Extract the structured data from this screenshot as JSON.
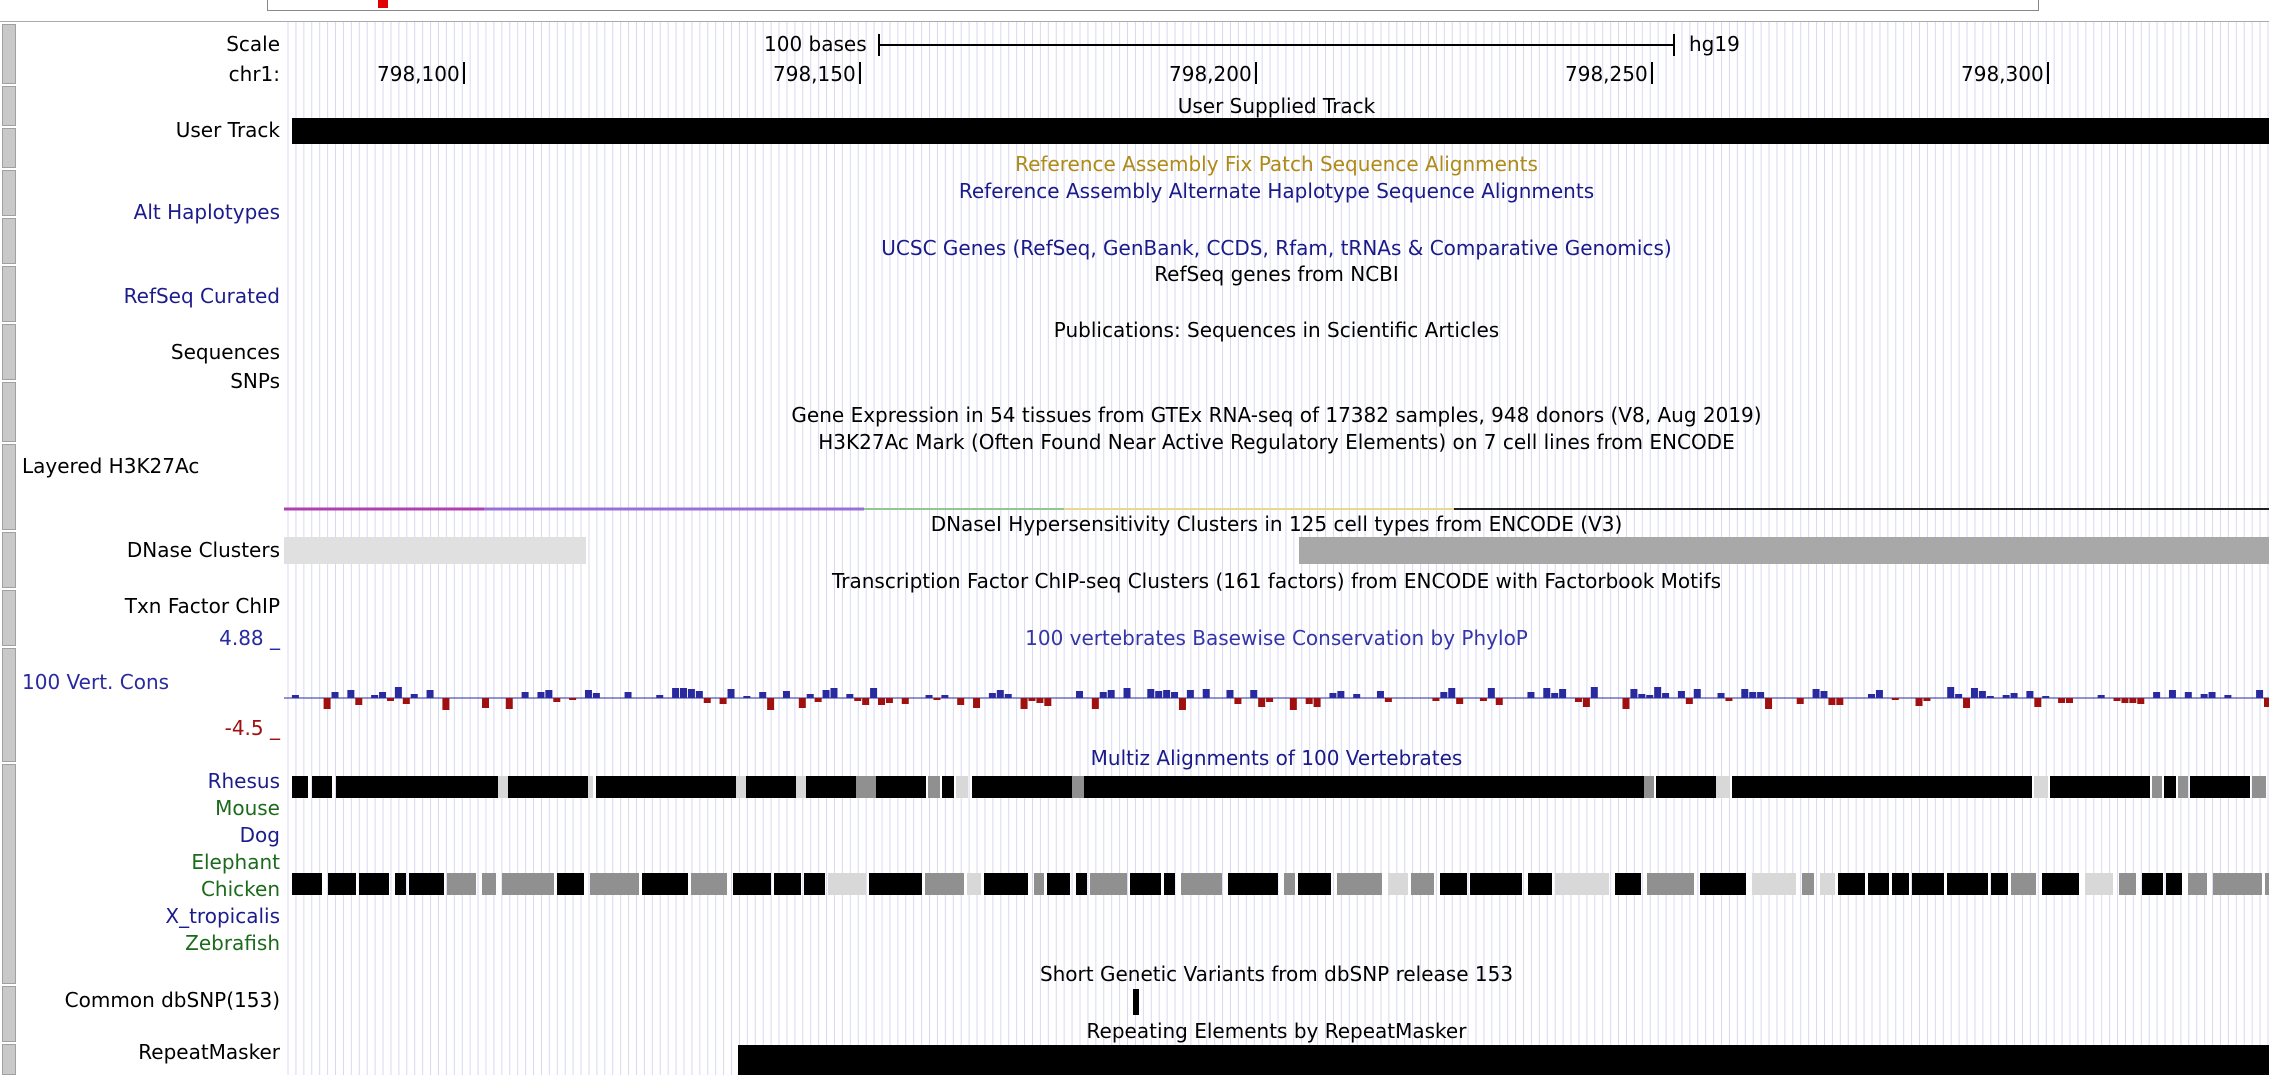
{
  "browser": {
    "assembly": "hg19",
    "scale_label": "Scale",
    "scale_text": "100 bases",
    "chrom_label": "chr1:",
    "positions": [
      "798,100",
      "798,150",
      "798,200",
      "798,250",
      "798,300"
    ]
  },
  "labels": {
    "user_track": "User Track",
    "alt_haplotypes": "Alt Haplotypes",
    "refseq_curated": "RefSeq Curated",
    "sequences": "Sequences",
    "snps": "SNPs",
    "layered_h3k27ac": "Layered H3K27Ac",
    "dnase_clusters": "DNase Clusters",
    "txn_factor_chip": "Txn Factor ChIP",
    "cons_max": "4.88 _",
    "vert_cons": "100 Vert. Cons",
    "cons_min": "-4.5 _",
    "rhesus": "Rhesus",
    "mouse": "Mouse",
    "dog": "Dog",
    "elephant": "Elephant",
    "chicken": "Chicken",
    "x_tropicalis": "X_tropicalis",
    "zebrafish": "Zebrafish",
    "common_dbsnp": "Common dbSNP(153)",
    "repeatmasker": "RepeatMasker"
  },
  "titles": {
    "user_supplied": "User Supplied Track",
    "fix_patch": "Reference Assembly Fix Patch Sequence Alignments",
    "alt_haplotype": "Reference Assembly Alternate Haplotype Sequence Alignments",
    "ucsc_genes": "UCSC Genes (RefSeq, GenBank, CCDS, Rfam, tRNAs & Comparative Genomics)",
    "refseq_ncbi": "RefSeq genes from NCBI",
    "publications": "Publications: Sequences in Scientific Articles",
    "gtex": "Gene Expression in 54 tissues from GTEx RNA-seq of 17382 samples, 948 donors (V8, Aug 2019)",
    "h3k27ac": "H3K27Ac Mark (Often Found Near Active Regulatory Elements) on 7 cell lines from ENCODE",
    "dnase": "DNaseI Hypersensitivity Clusters in 125 cell types from ENCODE (V3)",
    "tfbs": "Transcription Factor ChIP-seq Clusters (161 factors) from ENCODE with Factorbook Motifs",
    "phylop": "100 vertebrates Basewise Conservation by PhyloP",
    "multiz": "Multiz Alignments of 100 Vertebrates",
    "dbsnp": "Short Genetic Variants from dbSNP release 153",
    "repeat": "Repeating Elements by RepeatMasker"
  },
  "colors": {
    "gridline": "#d8d8f4",
    "cons_positive": "#2a2aa0",
    "cons_negative": "#a01010",
    "feature": "#000000",
    "dnase_light": "#e0e0e0",
    "dnase_dark": "#a8a8a8"
  }
}
